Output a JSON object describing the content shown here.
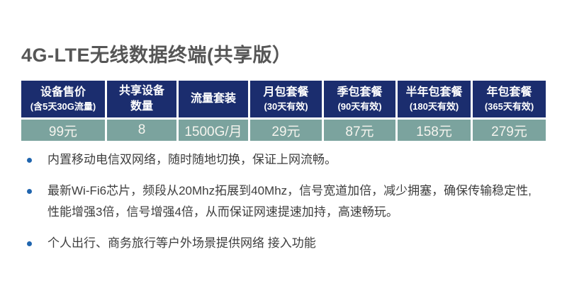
{
  "title": "4G-LTE无线数据终端(共享版）",
  "table": {
    "columns": [
      {
        "label": "设备售价",
        "sub": "(含5天30G流量)",
        "value": "99元"
      },
      {
        "label": "共享设备\n数量",
        "sub": "",
        "value": "8"
      },
      {
        "label": "流量套装",
        "sub": "",
        "value": "1500G/月"
      },
      {
        "label": "月包套餐",
        "sub": "(30天有效)",
        "value": "29元"
      },
      {
        "label": "季包套餐",
        "sub": "(90天有效)",
        "value": "87元"
      },
      {
        "label": "半年包套餐",
        "sub": "(180天有效)",
        "value": "158元"
      },
      {
        "label": "年包套餐",
        "sub": "(365天有效)",
        "value": "279元"
      }
    ]
  },
  "features": [
    "内置移动电信双网络，随时随地切换，保证上网流畅。",
    "最新Wi-Fi6芯片，频段从20Mhz拓展到40Mhz，信号宽道加倍，减少拥塞，确保传输稳定性,性能增强3倍，信号增强4倍，从而保证网速提速加持，高速畅玩。",
    "个人出行、商务旅行等户外场景提供网络 接入功能"
  ],
  "colors": {
    "header_bg": "#1b2d6e",
    "row_bg": "#7ba39e",
    "bullet": "#2065ae",
    "title_text": "#565656",
    "body_text": "#3e3e3e"
  }
}
